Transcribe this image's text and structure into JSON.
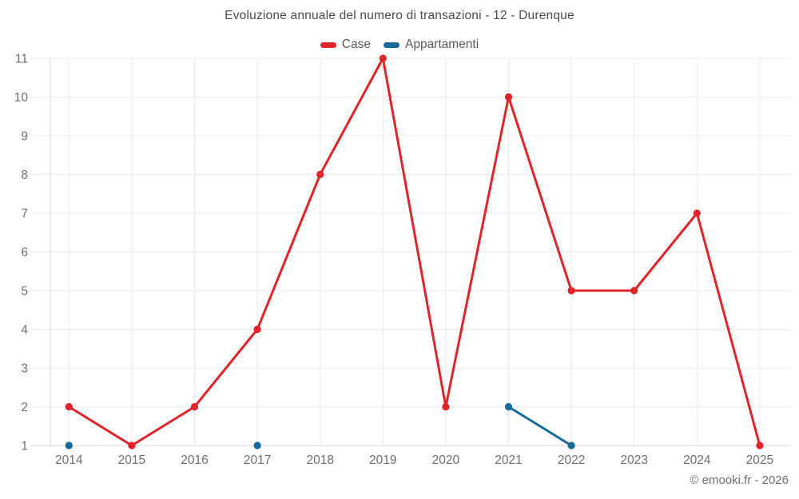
{
  "title": "Evoluzione annuale del numero di transazioni - 12 - Durenque",
  "footer": {
    "credit": "© emooki.fr - 2026"
  },
  "colors": {
    "background": "#ffffff",
    "grid": "#ebebeb",
    "axis": "#d9d9d9",
    "tick_label": "#6f6f6f",
    "title_text": "#4b4b4b",
    "legend_text": "#595959",
    "footer_text": "#6f6f6f"
  },
  "chart_data": {
    "type": "line",
    "title": "Evoluzione annuale del numero di transazioni - 12 - Durenque",
    "categories": [
      "2014",
      "2015",
      "2016",
      "2017",
      "2018",
      "2019",
      "2020",
      "2021",
      "2022",
      "2023",
      "2024",
      "2025"
    ],
    "series": [
      {
        "name": "Case",
        "color": "#e02429",
        "values": [
          2,
          1,
          2,
          4,
          8,
          11,
          2,
          10,
          5,
          5,
          7,
          1
        ]
      },
      {
        "name": "Appartamenti",
        "color": "#17699b",
        "values": [
          1,
          null,
          null,
          1,
          null,
          null,
          null,
          2,
          1,
          null,
          null,
          null
        ]
      }
    ],
    "xlabel": "",
    "ylabel": "",
    "ylim": [
      1,
      11
    ],
    "yticks": [
      1,
      2,
      3,
      4,
      5,
      6,
      7,
      8,
      9,
      10,
      11
    ],
    "grid": true,
    "legend_position": "top"
  }
}
